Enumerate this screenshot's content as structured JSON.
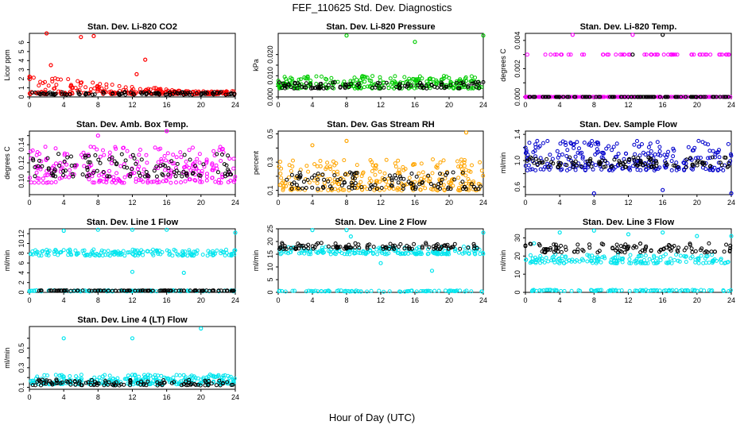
{
  "figure": {
    "title": "FEF_110625  Std. Dev. Diagnostics",
    "xlabel": "Hour of Day (UTC)"
  },
  "chart_data": [
    {
      "type": "scatter",
      "title": "Stan. Dev. Li-820 CO2",
      "ylabel": "Licor ppm",
      "xlim": [
        0,
        24
      ],
      "ylim": [
        0,
        7
      ],
      "xticks": [
        "0",
        "4",
        "8",
        "12",
        "16",
        "20",
        "24"
      ],
      "yticks": [
        0,
        1,
        2,
        3,
        4,
        5,
        6
      ],
      "ytick_labels": [
        "0",
        "1",
        "2",
        "3",
        "4",
        "5",
        "6"
      ],
      "series": [
        {
          "color": "#ff0000",
          "base": 0.3,
          "spread": 2.2,
          "decay": 0.55,
          "outliers": [
            [
              2.0,
              7.0
            ],
            [
              6.0,
              6.6
            ],
            [
              7.5,
              6.7
            ],
            [
              13.5,
              4.1
            ],
            [
              2.5,
              3.5
            ],
            [
              12.5,
              2.5
            ]
          ]
        },
        {
          "color": "#000000",
          "base": 0.25,
          "spread": 0.3,
          "decay": 0,
          "outliers": []
        }
      ]
    },
    {
      "type": "scatter",
      "title": "Stan. Dev. Li-820 Pressure",
      "ylabel": "kPa",
      "xlim": [
        0,
        24
      ],
      "ylim": [
        0,
        0.03
      ],
      "xticks": [
        "0",
        "4",
        "8",
        "12",
        "16",
        "20",
        "24"
      ],
      "yticks": [
        0,
        0.005,
        0.01,
        0.015,
        0.02
      ],
      "ytick_labels": [
        "0.000",
        "",
        "0.010",
        "",
        "0.020"
      ],
      "series": [
        {
          "color": "#00cc00",
          "base": 0.004,
          "spread": 0.006,
          "decay": 0,
          "outliers": [
            [
              8.0,
              0.029
            ],
            [
              16.0,
              0.026
            ],
            [
              24.0,
              0.029
            ]
          ]
        },
        {
          "color": "#000000",
          "base": 0.004,
          "spread": 0.003,
          "decay": 0,
          "outliers": []
        }
      ]
    },
    {
      "type": "scatter",
      "title": "Stan. Dev. Li-820 Temp.",
      "ylabel": "degrees C",
      "xlim": [
        0,
        24
      ],
      "ylim": [
        0,
        0.0045
      ],
      "xticks": [
        "0",
        "4",
        "8",
        "12",
        "16",
        "20",
        "24"
      ],
      "yticks": [
        0,
        0.001,
        0.002,
        0.003,
        0.004
      ],
      "ytick_labels": [
        "0.000",
        "",
        "0.002",
        "",
        "0.004"
      ],
      "series": [
        {
          "color": "#ff00ff",
          "base": 0,
          "spread": 0,
          "decay": 0,
          "levels": [
            0,
            0.003
          ],
          "outliers": [
            [
              5.5,
              0.0044
            ],
            [
              12.5,
              0.0044
            ]
          ]
        },
        {
          "color": "#000000",
          "base": 0,
          "spread": 0,
          "decay": 0,
          "levels": [
            0
          ],
          "outliers": [
            [
              12.5,
              0.003
            ],
            [
              16.0,
              0.0044
            ]
          ]
        }
      ]
    },
    {
      "type": "scatter",
      "title": "Stan. Dev. Amb. Box Temp.",
      "ylabel": "degrees C",
      "xlim": [
        0,
        24
      ],
      "ylim": [
        0.085,
        0.155
      ],
      "xticks": [
        "0",
        "4",
        "8",
        "12",
        "16",
        "20",
        "24"
      ],
      "yticks": [
        0.1,
        0.11,
        0.12,
        0.13,
        0.14,
        0.15
      ],
      "ytick_labels": [
        "0.10",
        "",
        "0.12",
        "",
        "0.14",
        ""
      ],
      "series": [
        {
          "color": "#ff00ff",
          "base": 0.098,
          "spread": 0.04,
          "decay": 0,
          "outliers": [
            [
              8.0,
              0.15
            ],
            [
              16.0,
              0.155
            ]
          ]
        },
        {
          "color": "#000000",
          "base": 0.105,
          "spread": 0.025,
          "decay": 0,
          "outliers": []
        }
      ]
    },
    {
      "type": "scatter",
      "title": "Stan. Dev. Gas Stream RH",
      "ylabel": "percent",
      "xlim": [
        0,
        24
      ],
      "ylim": [
        0.07,
        0.52
      ],
      "xticks": [
        "0",
        "4",
        "8",
        "12",
        "16",
        "20",
        "24"
      ],
      "yticks": [
        0.1,
        0.2,
        0.3,
        0.4,
        0.5
      ],
      "ytick_labels": [
        "0.1",
        "",
        "0.3",
        "",
        "0.5"
      ],
      "series": [
        {
          "color": "#ffa500",
          "base": 0.1,
          "spread": 0.22,
          "decay": 0,
          "outliers": [
            [
              22.0,
              0.51
            ],
            [
              4.0,
              0.42
            ],
            [
              8.0,
              0.45
            ]
          ]
        },
        {
          "color": "#000000",
          "base": 0.11,
          "spread": 0.12,
          "decay": 0,
          "outliers": []
        }
      ]
    },
    {
      "type": "scatter",
      "title": "Stan. Dev. Sample Flow",
      "ylabel": "ml/min",
      "xlim": [
        0,
        24
      ],
      "ylim": [
        0.48,
        1.45
      ],
      "xticks": [
        "0",
        "4",
        "8",
        "12",
        "16",
        "20",
        "24"
      ],
      "yticks": [
        0.6,
        0.8,
        1.0,
        1.2,
        1.4
      ],
      "ytick_labels": [
        "0.6",
        "",
        "1.0",
        "",
        "1.4"
      ],
      "series": [
        {
          "color": "#0000cc",
          "base": 0.85,
          "spread": 0.45,
          "decay": 0,
          "outliers": [
            [
              8.0,
              0.5
            ],
            [
              16.0,
              0.55
            ],
            [
              24.0,
              0.5
            ]
          ]
        },
        {
          "color": "#000000",
          "base": 0.9,
          "spread": 0.15,
          "decay": 0,
          "outliers": []
        }
      ]
    },
    {
      "type": "scatter",
      "title": "Stan. Dev. Line 1 Flow",
      "ylabel": "ml/min",
      "xlim": [
        0,
        24
      ],
      "ylim": [
        0,
        13
      ],
      "xticks": [
        "0",
        "4",
        "8",
        "12",
        "16",
        "20",
        "24"
      ],
      "yticks": [
        0,
        2,
        4,
        6,
        8,
        10,
        12
      ],
      "ytick_labels": [
        "0",
        "2",
        "4",
        "6",
        "8",
        "10",
        "12"
      ],
      "series": [
        {
          "color": "#00e5ee",
          "base": 7.5,
          "spread": 1.3,
          "decay": 0,
          "levels": [
            0.3
          ],
          "outliers": [
            [
              4.0,
              12.6
            ],
            [
              8.0,
              12.8
            ],
            [
              12.0,
              12.8
            ],
            [
              16.0,
              12.8
            ],
            [
              24.0,
              12.2
            ],
            [
              12.0,
              4.2
            ],
            [
              18.0,
              4.0
            ]
          ]
        },
        {
          "color": "#000000",
          "base": 0.3,
          "spread": 0.1,
          "decay": 0,
          "outliers": []
        }
      ]
    },
    {
      "type": "scatter",
      "title": "Stan. Dev. Line 2 Flow",
      "ylabel": "ml/min",
      "xlim": [
        0,
        24
      ],
      "ylim": [
        0,
        25
      ],
      "xticks": [
        "0",
        "4",
        "8",
        "12",
        "16",
        "20",
        "24"
      ],
      "yticks": [
        0,
        5,
        10,
        15,
        20,
        25
      ],
      "ytick_labels": [
        "0",
        "5",
        "10",
        "15",
        "20",
        "25"
      ],
      "series": [
        {
          "color": "#00e5ee",
          "base": 15,
          "spread": 3,
          "decay": 0,
          "levels": [
            0.5
          ],
          "outliers": [
            [
              4.0,
              24.5
            ],
            [
              8.0,
              24.5
            ],
            [
              12.0,
              11.5
            ],
            [
              18.0,
              8.5
            ],
            [
              24.0,
              23.5
            ],
            [
              8.5,
              22.0
            ]
          ]
        },
        {
          "color": "#000000",
          "base": 17,
          "spread": 2.5,
          "decay": 0,
          "outliers": []
        }
      ]
    },
    {
      "type": "scatter",
      "title": "Stan. Dev. Line 3 Flow",
      "ylabel": "ml/min",
      "xlim": [
        0,
        24
      ],
      "ylim": [
        0,
        35
      ],
      "xticks": [
        "0",
        "4",
        "8",
        "12",
        "16",
        "20",
        "24"
      ],
      "yticks": [
        0,
        10,
        20,
        30
      ],
      "ytick_labels": [
        "0",
        "10",
        "20",
        "30"
      ],
      "series": [
        {
          "color": "#00e5ee",
          "base": 16,
          "spread": 5,
          "decay": 0,
          "levels": [
            1.0
          ],
          "outliers": [
            [
              4.0,
              33
            ],
            [
              8.0,
              34
            ],
            [
              12.0,
              32
            ],
            [
              16.0,
              33
            ],
            [
              20.0,
              31
            ],
            [
              24.0,
              31
            ],
            [
              1.0,
              27
            ]
          ]
        },
        {
          "color": "#000000",
          "base": 22,
          "spread": 5,
          "decay": 0,
          "outliers": []
        }
      ]
    },
    {
      "type": "scatter",
      "title": "Stan. Dev. Line 4 (LT) Flow",
      "ylabel": "ml/min",
      "xlim": [
        0,
        24
      ],
      "ylim": [
        0.08,
        0.72
      ],
      "xticks": [
        "0",
        "4",
        "8",
        "12",
        "16",
        "20",
        "24"
      ],
      "yticks": [
        0.1,
        0.2,
        0.3,
        0.4,
        0.5,
        0.6
      ],
      "ytick_labels": [
        "0.1",
        "",
        "0.3",
        "",
        "0.5",
        ""
      ],
      "series": [
        {
          "color": "#00e5ee",
          "base": 0.13,
          "spread": 0.1,
          "decay": 0,
          "outliers": [
            [
              4.0,
              0.6
            ],
            [
              12.0,
              0.6
            ],
            [
              20.0,
              0.7
            ]
          ]
        },
        {
          "color": "#000000",
          "base": 0.12,
          "spread": 0.06,
          "decay": 0,
          "outliers": []
        }
      ]
    }
  ]
}
